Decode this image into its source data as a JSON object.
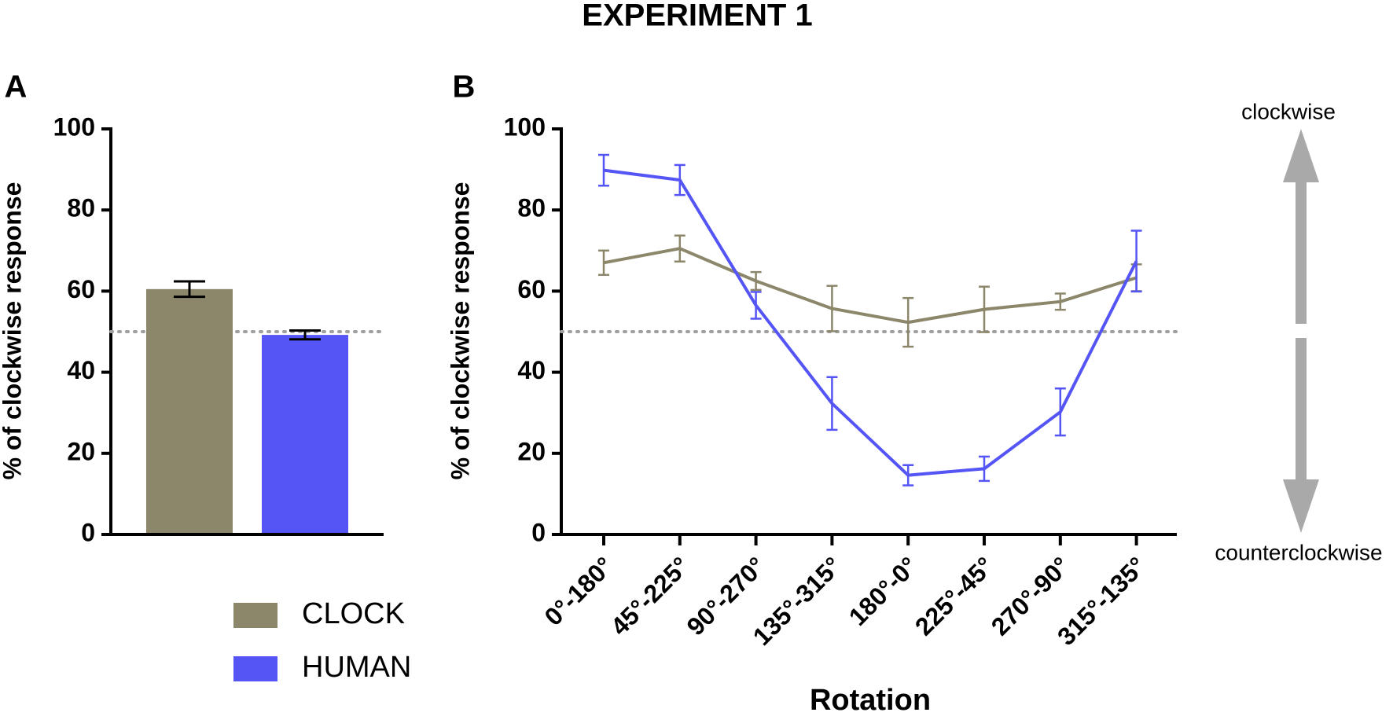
{
  "title": "EXPERIMENT 1",
  "chart_data": [
    {
      "type": "bar",
      "panel_label": "A",
      "ylabel": "% of clockwise response",
      "ylim": [
        0,
        100
      ],
      "yticks": [
        0,
        20,
        40,
        60,
        80,
        100
      ],
      "reference_line": 50,
      "series": [
        {
          "name": "CLOCK",
          "color": "#8c876a",
          "values": [
            60.5
          ],
          "errors": [
            1.9
          ]
        },
        {
          "name": "HUMAN",
          "color": "#5555f5",
          "values": [
            49.2
          ],
          "errors": [
            1.1
          ]
        }
      ]
    },
    {
      "type": "line",
      "panel_label": "B",
      "ylabel": "% of clockwise response",
      "xlabel": "Rotation",
      "categories": [
        "0°-180°",
        "45°-225°",
        "90°-270°",
        "135°-315°",
        "180°-0°",
        "225°-45°",
        "270°-90°",
        "315°-135°"
      ],
      "ylim": [
        0,
        100
      ],
      "yticks": [
        0,
        20,
        40,
        60,
        80,
        100
      ],
      "reference_line": 50,
      "series": [
        {
          "color": "#8c876a",
          "values": [
            67,
            70.5,
            62.5,
            55.7,
            52.3,
            55.5,
            57.4,
            63.3
          ],
          "errors": [
            3,
            3.2,
            2.2,
            5.6,
            6,
            5.6,
            2,
            3.3
          ]
        },
        {
          "color": "#5555f5",
          "values": [
            89.8,
            87.4,
            56.5,
            32.3,
            14.6,
            16.2,
            30.2,
            67.4
          ],
          "errors": [
            3.8,
            3.7,
            3.3,
            6.5,
            2.5,
            3,
            5.8,
            7.5
          ]
        }
      ],
      "annotations": [
        "clockwise",
        "counterclockwise"
      ]
    }
  ]
}
